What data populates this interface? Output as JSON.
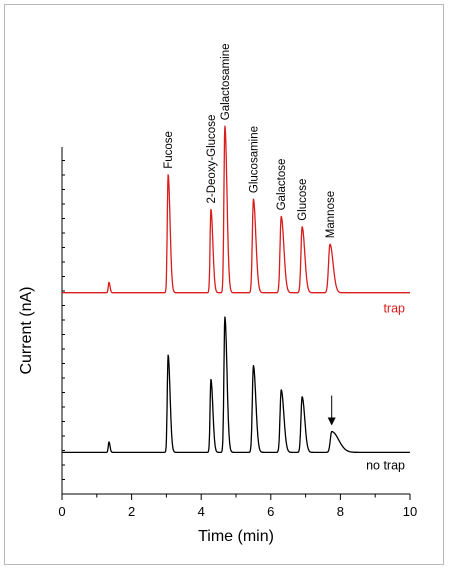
{
  "chart_data": {
    "type": "line",
    "xlabel": "Time (min)",
    "ylabel": "Current (nA)",
    "xlim": [
      0,
      10
    ],
    "xticks": [
      0,
      2,
      4,
      6,
      8,
      10
    ],
    "y_tick_labels": false,
    "grid": false,
    "peaks": [
      "Fucose",
      "2-Deoxy-Glucose",
      "Galactosamine",
      "Glucosamine",
      "Galactose",
      "Glucose",
      "Mannose"
    ],
    "series": [
      {
        "name": "trap",
        "color": "#d91c1c",
        "baseline": 0.58,
        "small_peak": {
          "t": 1.35,
          "h": 0.03
        },
        "peak_times": [
          3.05,
          4.28,
          4.68,
          5.5,
          6.3,
          6.9,
          7.7
        ],
        "peak_heights": [
          0.34,
          0.24,
          0.48,
          0.27,
          0.22,
          0.19,
          0.14
        ]
      },
      {
        "name": "no trap",
        "color": "#000000",
        "baseline": 0.12,
        "small_peak": {
          "t": 1.35,
          "h": 0.03
        },
        "peak_times": [
          3.05,
          4.28,
          4.68,
          5.5,
          6.3,
          6.9,
          7.75
        ],
        "peak_heights": [
          0.28,
          0.21,
          0.39,
          0.25,
          0.18,
          0.16,
          0.06
        ]
      }
    ],
    "annotations": [
      {
        "type": "arrow",
        "series": "no trap",
        "x": 7.75
      }
    ]
  }
}
